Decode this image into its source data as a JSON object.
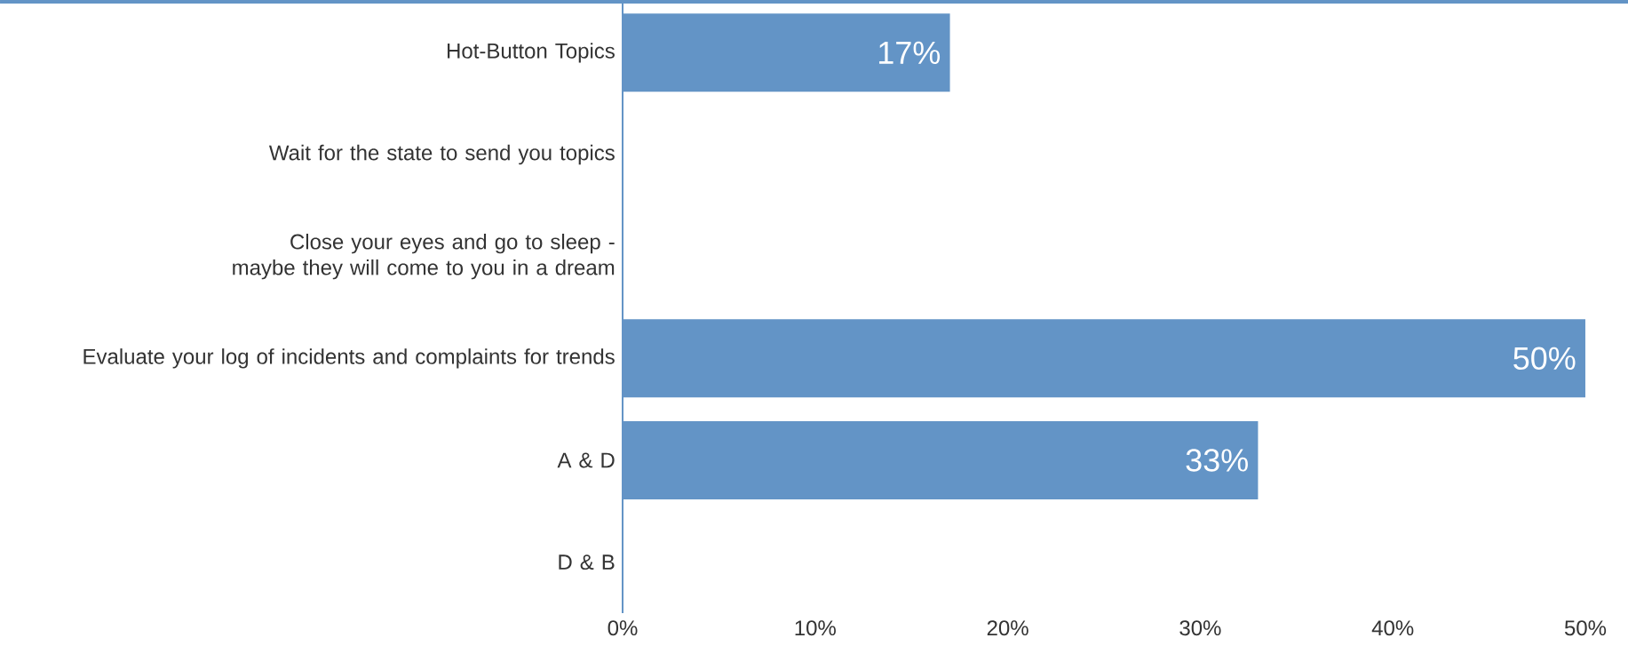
{
  "chart_data": {
    "type": "bar",
    "orientation": "horizontal",
    "categories": [
      "Hot-Button Topics",
      "Wait for the state to send you topics",
      "Close your eyes and go to sleep - maybe they will come to you in a dream",
      "Evaluate your log of incidents and complaints for trends",
      "A & D",
      "D & B"
    ],
    "values": [
      17,
      0,
      0,
      50,
      33,
      0
    ],
    "value_labels": [
      "17%",
      null,
      null,
      "50%",
      "33%",
      null
    ],
    "color": "#6394c6",
    "xlim": [
      0,
      50
    ],
    "xticks": [
      {
        "value": 0,
        "label": "0%"
      },
      {
        "value": 10,
        "label": "10%"
      },
      {
        "value": 20,
        "label": "20%"
      },
      {
        "value": 30,
        "label": "30%"
      },
      {
        "value": 40,
        "label": "40%"
      },
      {
        "value": 50,
        "label": "50%"
      }
    ]
  }
}
